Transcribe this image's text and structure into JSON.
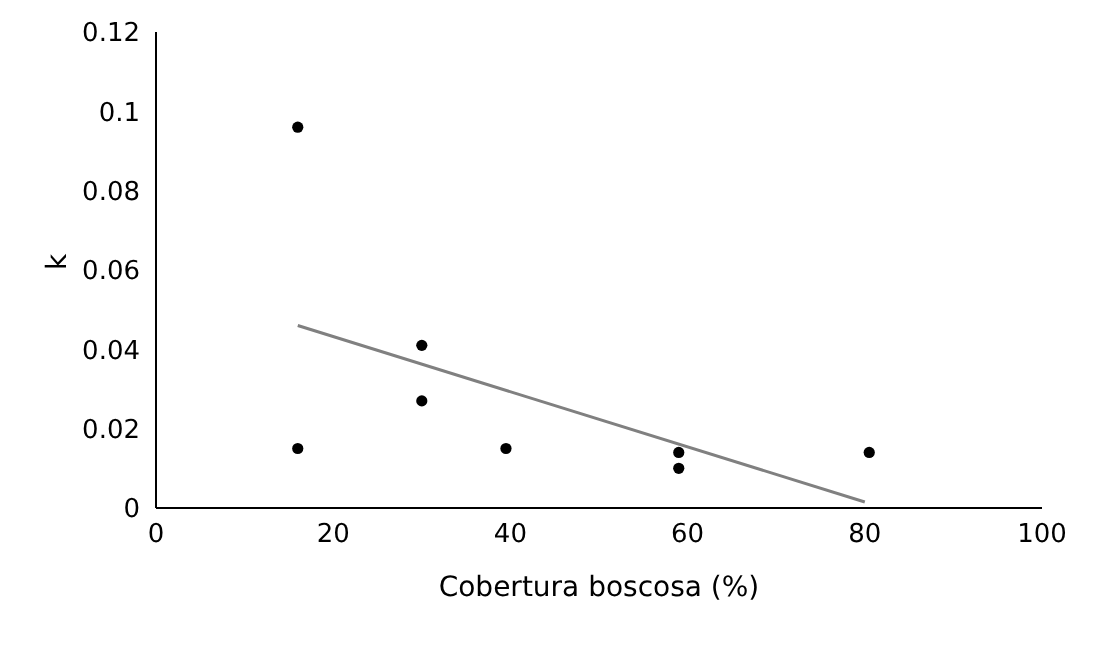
{
  "chart_data": {
    "type": "scatter",
    "xlabel": "Cobertura boscosa (%)",
    "ylabel": "k",
    "xlim": [
      0,
      100
    ],
    "xticks": [
      0,
      20,
      40,
      60,
      80,
      100
    ],
    "ylim": [
      0,
      0.12
    ],
    "yticks": [
      0,
      0.02,
      0.04,
      0.06,
      0.08,
      0.1,
      0.12
    ],
    "grid": false,
    "marker": "circle",
    "series": [
      {
        "color": "#000000",
        "x": [
          16,
          16,
          30,
          30,
          39.5,
          59,
          59,
          80.5
        ],
        "values": [
          0.096,
          0.015,
          0.041,
          0.027,
          0.015,
          0.014,
          0.01,
          0.014
        ]
      },
      {
        "type": "line",
        "color": "#808080",
        "x": [
          16,
          80
        ],
        "values": [
          0.046,
          0.0015
        ],
        "marker": "none",
        "line_style": "solid"
      }
    ]
  }
}
